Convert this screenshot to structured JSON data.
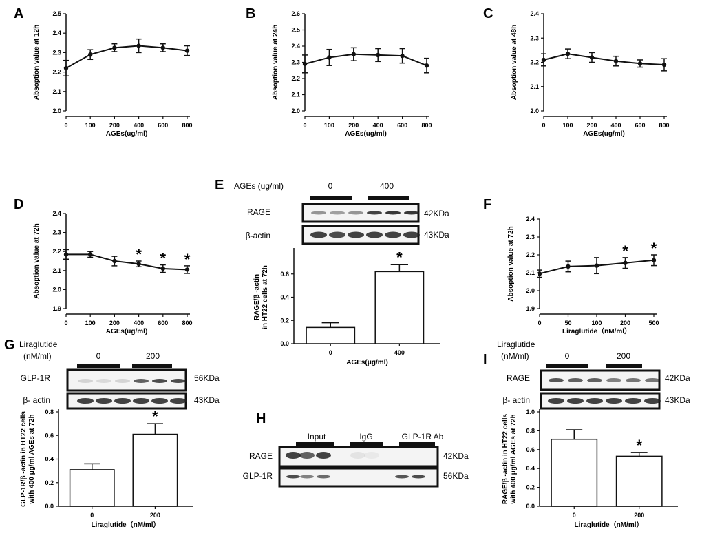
{
  "chart_data": [
    {
      "id": "A",
      "type": "line",
      "label": "A",
      "categories": [
        "0",
        "100",
        "200",
        "400",
        "600",
        "800"
      ],
      "values": [
        2.22,
        2.29,
        2.325,
        2.335,
        2.325,
        2.31
      ],
      "errors": [
        0.04,
        0.025,
        0.02,
        0.035,
        0.02,
        0.025
      ],
      "yticks": [
        "2.0",
        "2.1",
        "2.2",
        "2.3",
        "2.4",
        "2.5"
      ],
      "ylim": [
        2.0,
        2.5
      ],
      "xlabel": "AGEs(ug/ml)",
      "ylabel": "Absoption value at 12h",
      "stars": []
    },
    {
      "id": "B",
      "type": "line",
      "label": "B",
      "categories": [
        "0",
        "100",
        "200",
        "400",
        "600",
        "800"
      ],
      "values": [
        2.29,
        2.33,
        2.35,
        2.345,
        2.34,
        2.28
      ],
      "errors": [
        0.055,
        0.05,
        0.04,
        0.04,
        0.045,
        0.045
      ],
      "yticks": [
        "2.0",
        "2.1",
        "2.2",
        "2.3",
        "2.4",
        "2.5",
        "2.6"
      ],
      "ylim": [
        2.0,
        2.6
      ],
      "xlabel": "AGEs(ug/ml)",
      "ylabel": "Absoption value at 24h",
      "stars": []
    },
    {
      "id": "C",
      "type": "line",
      "label": "C",
      "categories": [
        "0",
        "100",
        "200",
        "400",
        "600",
        "800"
      ],
      "values": [
        2.21,
        2.235,
        2.22,
        2.205,
        2.195,
        2.19
      ],
      "errors": [
        0.025,
        0.02,
        0.02,
        0.02,
        0.015,
        0.025
      ],
      "yticks": [
        "2.0",
        "2.1",
        "2.2",
        "2.3",
        "2.4"
      ],
      "ylim": [
        2.0,
        2.4
      ],
      "xlabel": "AGEs(ug/ml)",
      "ylabel": "Absoption value at 48h",
      "stars": []
    },
    {
      "id": "D",
      "type": "line",
      "label": "D",
      "categories": [
        "0",
        "100",
        "200",
        "400",
        "600",
        "800"
      ],
      "values": [
        2.185,
        2.185,
        2.15,
        2.135,
        2.11,
        2.105
      ],
      "errors": [
        0.025,
        0.015,
        0.025,
        0.015,
        0.02,
        0.02
      ],
      "yticks": [
        "1.9",
        "2.0",
        "2.1",
        "2.2",
        "2.3",
        "2.4"
      ],
      "ylim": [
        1.9,
        2.4
      ],
      "xlabel": "AGEs(ug/ml)",
      "ylabel": "Absoption value at 72h",
      "stars": [
        false,
        false,
        false,
        true,
        true,
        true
      ],
      "star_symbol": "*"
    },
    {
      "id": "F",
      "type": "line",
      "label": "F",
      "categories": [
        "0",
        "50",
        "100",
        "200",
        "500"
      ],
      "values": [
        2.095,
        2.135,
        2.14,
        2.155,
        2.17
      ],
      "errors": [
        0.02,
        0.03,
        0.045,
        0.03,
        0.03
      ],
      "yticks": [
        "1.9",
        "2.0",
        "2.1",
        "2.2",
        "2.3",
        "2.4"
      ],
      "ylim": [
        1.9,
        2.4
      ],
      "xlabel": "Liraglutide（nM/ml）",
      "ylabel": "Absoption value at 72h",
      "stars": [
        false,
        false,
        false,
        true,
        true
      ],
      "star_symbol": "*"
    },
    {
      "id": "E",
      "type": "bar",
      "label": "E",
      "categories": [
        "0",
        "400"
      ],
      "values": [
        0.14,
        0.62
      ],
      "errors": [
        0.04,
        0.06
      ],
      "yticks": [
        "0.0",
        "0.2",
        "0.4",
        "0.6"
      ],
      "ylim": [
        0,
        0.8
      ],
      "xlabel": "AGEs(μg/ml)",
      "ylabel_lines": [
        "RAGE/β -actin",
        "in HT22 cells at 72h"
      ],
      "stars": [
        false,
        true
      ],
      "star_symbol": "*",
      "blot": {
        "treatment_label": "AGEs (ug/ml)",
        "groups": [
          "0",
          "400"
        ],
        "rows": [
          {
            "name": "RAGE",
            "size": "42KDa"
          },
          {
            "name": "β-actin",
            "size": "43KDa"
          }
        ]
      }
    },
    {
      "id": "G",
      "type": "bar",
      "label": "G",
      "categories": [
        "0",
        "200"
      ],
      "values": [
        0.31,
        0.61
      ],
      "errors": [
        0.05,
        0.09
      ],
      "yticks": [
        "0.0",
        "0.2",
        "0.4",
        "0.6",
        "0.8"
      ],
      "ylim": [
        0,
        0.8
      ],
      "xlabel": "Liraglutide（nM/ml）",
      "ylabel_lines": [
        "GLP-1R/β -actin in HT22 cells",
        "with 400 μg/ml AGEs at 72h"
      ],
      "stars": [
        false,
        true
      ],
      "star_symbol": "*",
      "blot": {
        "treatment_lines": [
          "Liraglutide",
          "(nM/ml)"
        ],
        "groups": [
          "0",
          "200"
        ],
        "rows": [
          {
            "name": "GLP-1R",
            "size": "56KDa"
          },
          {
            "name": "β- actin",
            "size": "43KDa"
          }
        ]
      }
    },
    {
      "id": "I",
      "type": "bar",
      "label": "I",
      "categories": [
        "0",
        "200"
      ],
      "values": [
        0.71,
        0.53
      ],
      "errors": [
        0.1,
        0.04
      ],
      "yticks": [
        "0.0",
        "0.2",
        "0.4",
        "0.6",
        "0.8",
        "1.0"
      ],
      "ylim": [
        0,
        1.0
      ],
      "xlabel": "Liraglutide（nM/ml）",
      "ylabel_lines": [
        "RAGE/β -actin in HT22 cells",
        "with 400 μg/ml AGEs at 72h"
      ],
      "stars": [
        false,
        true
      ],
      "star_symbol": "*",
      "blot": {
        "treatment_lines": [
          "Liraglutide",
          "(nM/ml)"
        ],
        "groups": [
          "0",
          "200"
        ],
        "rows": [
          {
            "name": "RAGE",
            "size": "42KDa"
          },
          {
            "name": "β- actin",
            "size": "43KDa"
          }
        ]
      }
    }
  ],
  "panel_H": {
    "label": "H",
    "lanes": [
      "Input",
      "IgG",
      "GLP-1R Ab"
    ],
    "rows": [
      {
        "name": "RAGE",
        "size": "42KDa"
      },
      {
        "name": "GLP-1R",
        "size": "56KDa"
      }
    ]
  }
}
